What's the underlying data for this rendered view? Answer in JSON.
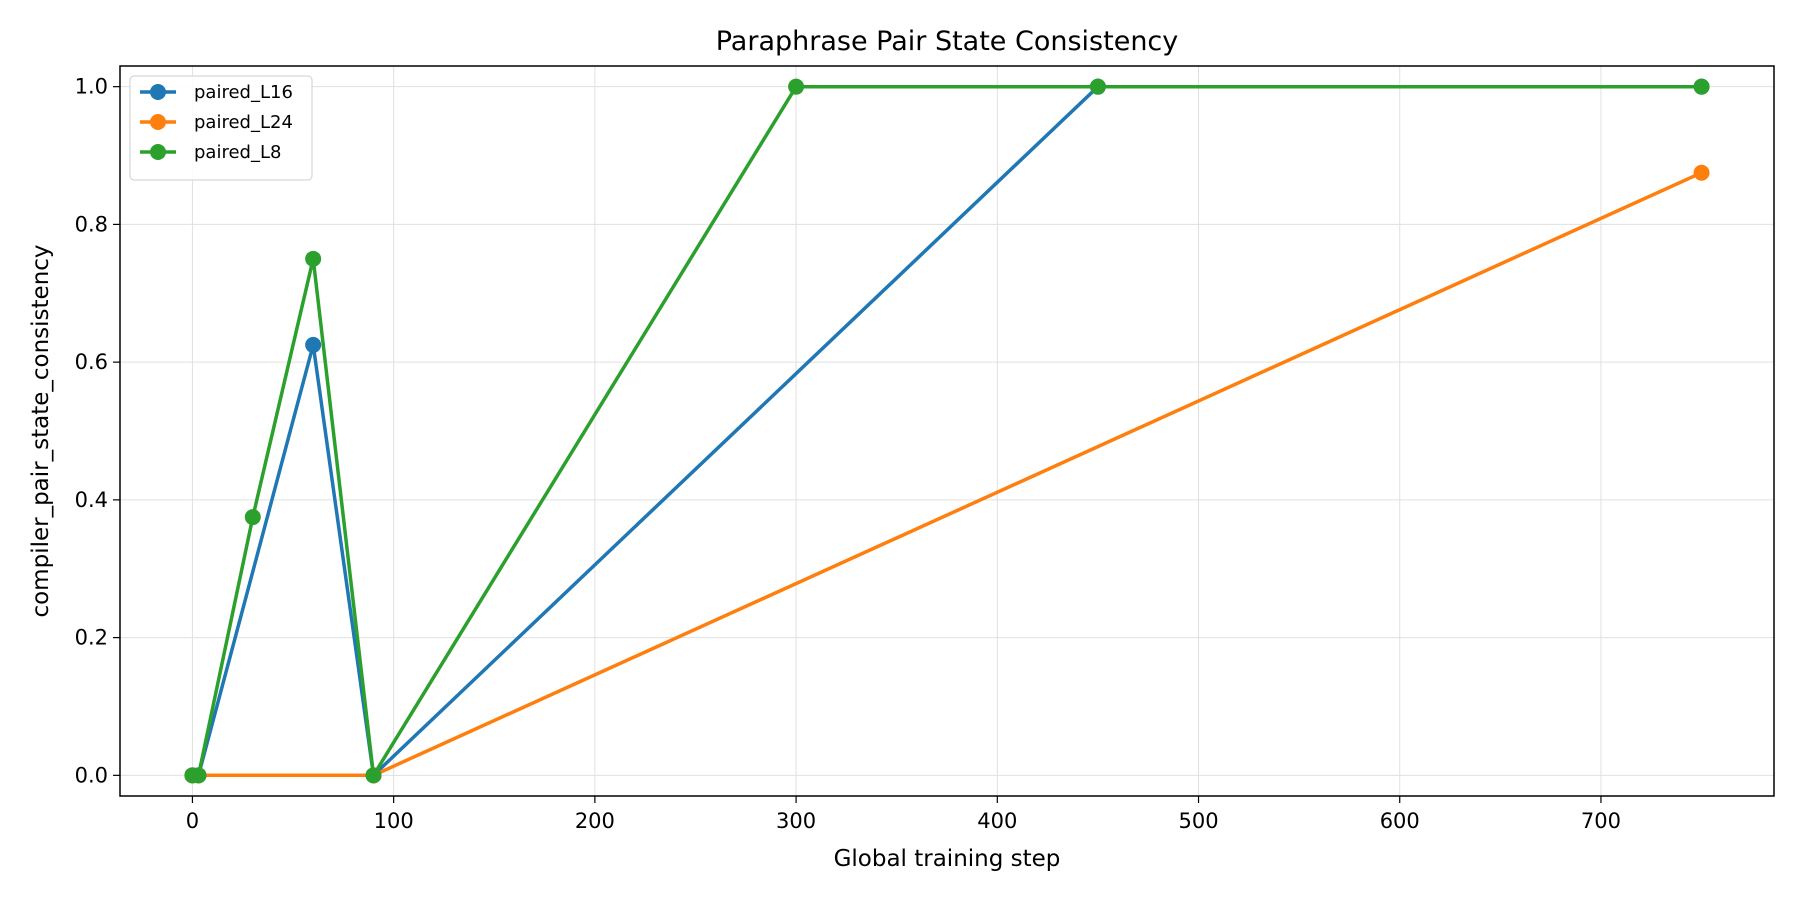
{
  "chart_data": {
    "type": "line",
    "title": "Paraphrase Pair State Consistency",
    "xlabel": "Global training step",
    "ylabel": "compiler_pair_state_consistency",
    "xlim": [
      -36,
      786
    ],
    "ylim": [
      -0.03,
      1.03
    ],
    "xticks": [
      0,
      100,
      200,
      300,
      400,
      500,
      600,
      700
    ],
    "yticks": [
      0.0,
      0.2,
      0.4,
      0.6,
      0.8,
      1.0
    ],
    "xtick_labels": [
      "0",
      "100",
      "200",
      "300",
      "400",
      "500",
      "600",
      "700"
    ],
    "ytick_labels": [
      "0.0",
      "0.2",
      "0.4",
      "0.6",
      "0.8",
      "1.0"
    ],
    "grid": true,
    "legend_position": "top-left",
    "series": [
      {
        "name": "paired_L16",
        "color": "#1f77b4",
        "points": [
          [
            0,
            0.0
          ],
          [
            3,
            0.0
          ],
          [
            60,
            0.625
          ],
          [
            90,
            0.0
          ],
          [
            450,
            1.0
          ],
          [
            750,
            1.0
          ]
        ]
      },
      {
        "name": "paired_L24",
        "color": "#ff7f0e",
        "points": [
          [
            0,
            0.0
          ],
          [
            3,
            0.0
          ],
          [
            90,
            0.0
          ],
          [
            750,
            0.875
          ]
        ]
      },
      {
        "name": "paired_L8",
        "color": "#2ca02c",
        "points": [
          [
            0,
            0.0
          ],
          [
            3,
            0.0
          ],
          [
            30,
            0.375
          ],
          [
            60,
            0.75
          ],
          [
            90,
            0.0
          ],
          [
            300,
            1.0
          ],
          [
            450,
            1.0
          ],
          [
            750,
            1.0
          ]
        ]
      }
    ]
  }
}
